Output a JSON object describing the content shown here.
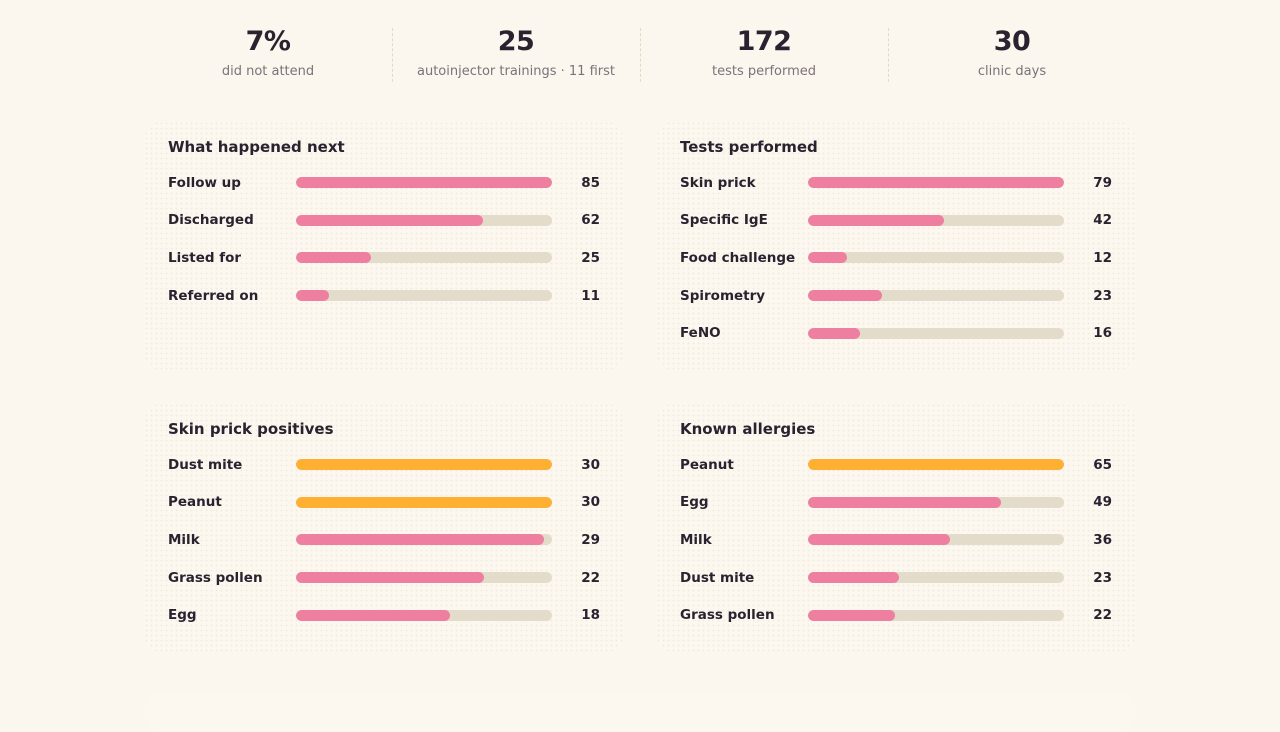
{
  "stats": [
    {
      "value": "7%",
      "label": "did not attend"
    },
    {
      "value": "25",
      "label": "autoinjector trainings · 11 first"
    },
    {
      "value": "172",
      "label": "tests performed"
    },
    {
      "value": "30",
      "label": "clinic days"
    }
  ],
  "colors": {
    "pink": "#ef7fa0",
    "orange": "#ffb033",
    "track": "#e4dccb"
  },
  "cards": [
    {
      "title": "What happened next",
      "rows": [
        {
          "label": "Follow up",
          "value": "85",
          "fraction": 1.0,
          "color": "pink"
        },
        {
          "label": "Discharged",
          "value": "62",
          "fraction": 0.729,
          "color": "pink"
        },
        {
          "label": "Listed for",
          "value": "25",
          "fraction": 0.294,
          "color": "pink"
        },
        {
          "label": "Referred on",
          "value": "11",
          "fraction": 0.129,
          "color": "pink"
        }
      ]
    },
    {
      "title": "Tests performed",
      "rows": [
        {
          "label": "Skin prick",
          "value": "79",
          "fraction": 1.0,
          "color": "pink"
        },
        {
          "label": "Specific IgE",
          "value": "42",
          "fraction": 0.532,
          "color": "pink"
        },
        {
          "label": "Food challenge",
          "value": "12",
          "fraction": 0.152,
          "color": "pink"
        },
        {
          "label": "Spirometry",
          "value": "23",
          "fraction": 0.291,
          "color": "pink"
        },
        {
          "label": "FeNO",
          "value": "16",
          "fraction": 0.203,
          "color": "pink"
        }
      ]
    },
    {
      "title": "Skin prick positives",
      "rows": [
        {
          "label": "Dust mite",
          "value": "30",
          "fraction": 1.0,
          "color": "orange"
        },
        {
          "label": "Peanut",
          "value": "30",
          "fraction": 1.0,
          "color": "orange"
        },
        {
          "label": "Milk",
          "value": "29",
          "fraction": 0.967,
          "color": "pink"
        },
        {
          "label": "Grass pollen",
          "value": "22",
          "fraction": 0.733,
          "color": "pink"
        },
        {
          "label": "Egg",
          "value": "18",
          "fraction": 0.6,
          "color": "pink"
        }
      ]
    },
    {
      "title": "Known allergies",
      "rows": [
        {
          "label": "Peanut",
          "value": "65",
          "fraction": 1.0,
          "color": "orange"
        },
        {
          "label": "Egg",
          "value": "49",
          "fraction": 0.754,
          "color": "pink"
        },
        {
          "label": "Milk",
          "value": "36",
          "fraction": 0.554,
          "color": "pink"
        },
        {
          "label": "Dust mite",
          "value": "23",
          "fraction": 0.354,
          "color": "pink"
        },
        {
          "label": "Grass pollen",
          "value": "22",
          "fraction": 0.338,
          "color": "pink"
        }
      ]
    }
  ]
}
